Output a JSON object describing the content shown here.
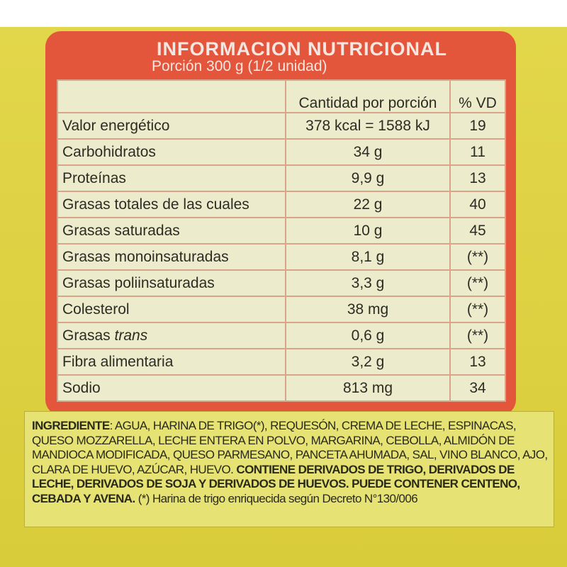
{
  "label": {
    "title": "INFORMACION NUTRICIONAL",
    "serving": "Porción 300 g (1/2 unidad)",
    "headers": {
      "amount": "Cantidad por porción",
      "vd": "% VD"
    },
    "rows": [
      {
        "name": "Valor energético",
        "amount": "378 kcal = 1588 kJ",
        "vd": "19"
      },
      {
        "name": "Carbohidratos",
        "amount": "34 g",
        "vd": "11"
      },
      {
        "name": "Proteínas",
        "amount": "9,9 g",
        "vd": "13"
      },
      {
        "name": "Grasas totales de las cuales",
        "amount": "22 g",
        "vd": "40"
      },
      {
        "name": "Grasas saturadas",
        "amount": "10 g",
        "vd": "45"
      },
      {
        "name": "Grasas monoinsaturadas",
        "amount": "8,1 g",
        "vd": "(**)"
      },
      {
        "name": "Grasas poliinsaturadas",
        "amount": "3,3 g",
        "vd": "(**)"
      },
      {
        "name": "Colesterol",
        "amount": "38 mg",
        "vd": "(**)"
      },
      {
        "name": "Grasas trans",
        "amount": "0,6 g",
        "vd": "(**)"
      },
      {
        "name": "Fibra alimentaria",
        "amount": "3,2 g",
        "vd": "13"
      },
      {
        "name": "Sodio",
        "amount": "813 mg",
        "vd": "34"
      }
    ]
  },
  "ingredients": {
    "heading": "INGREDIENTE",
    "list": ": AGUA, HARINA DE TRIGO(*), REQUESÓN, CREMA DE LECHE, ESPINACAS, QUESO MOZZARELLA, LECHE ENTERA EN POLVO, MARGARINA, CEBOLLA, ALMIDÓN DE MANDIOCA MODIFICADA, QUESO PARMESANO, PANCETA AHUMADA, SAL, VINO BLANCO, AJO, CLARA DE HUEVO, AZÚCAR, HUEVO. ",
    "allergens": "CONTIENE DERIVADOS DE TRIGO, DERIVADOS DE LECHE, DERIVADOS DE SOJA Y DERIVADOS DE HUEVOS. PUEDE CONTENER CENTENO, CEBADA Y AVENA.",
    "footnote": " (*) Harina de trigo enriquecida según Decreto N°130/006"
  }
}
